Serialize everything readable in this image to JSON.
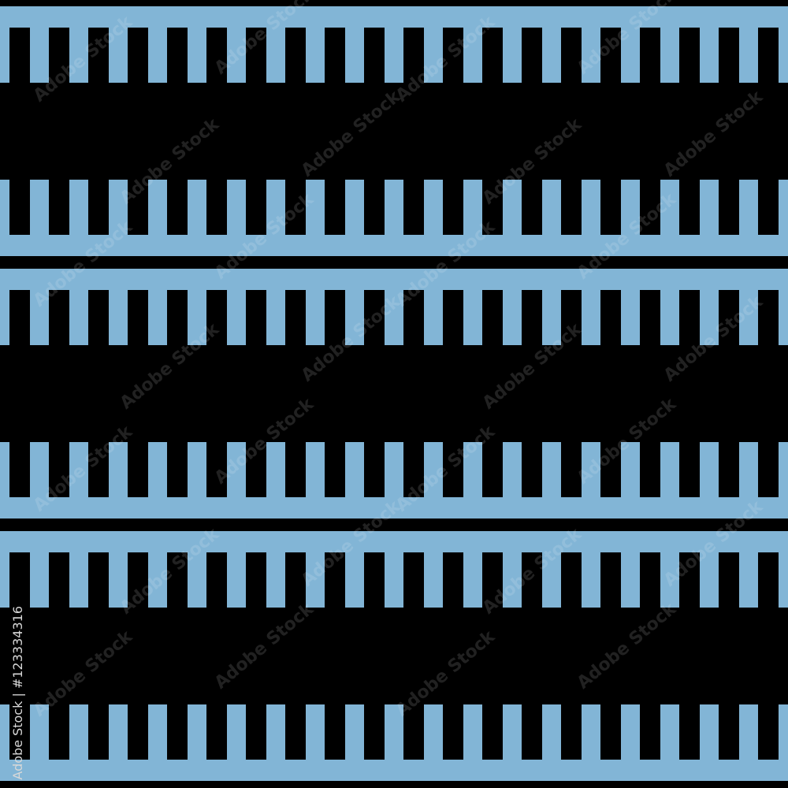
{
  "pattern": {
    "background_color": "#000000",
    "stripe_color": "#82b5d6",
    "band_count": 3
  },
  "watermark": {
    "repeated_text": "Adobe Stock",
    "id_label": "Adobe Stock | #123334316"
  }
}
